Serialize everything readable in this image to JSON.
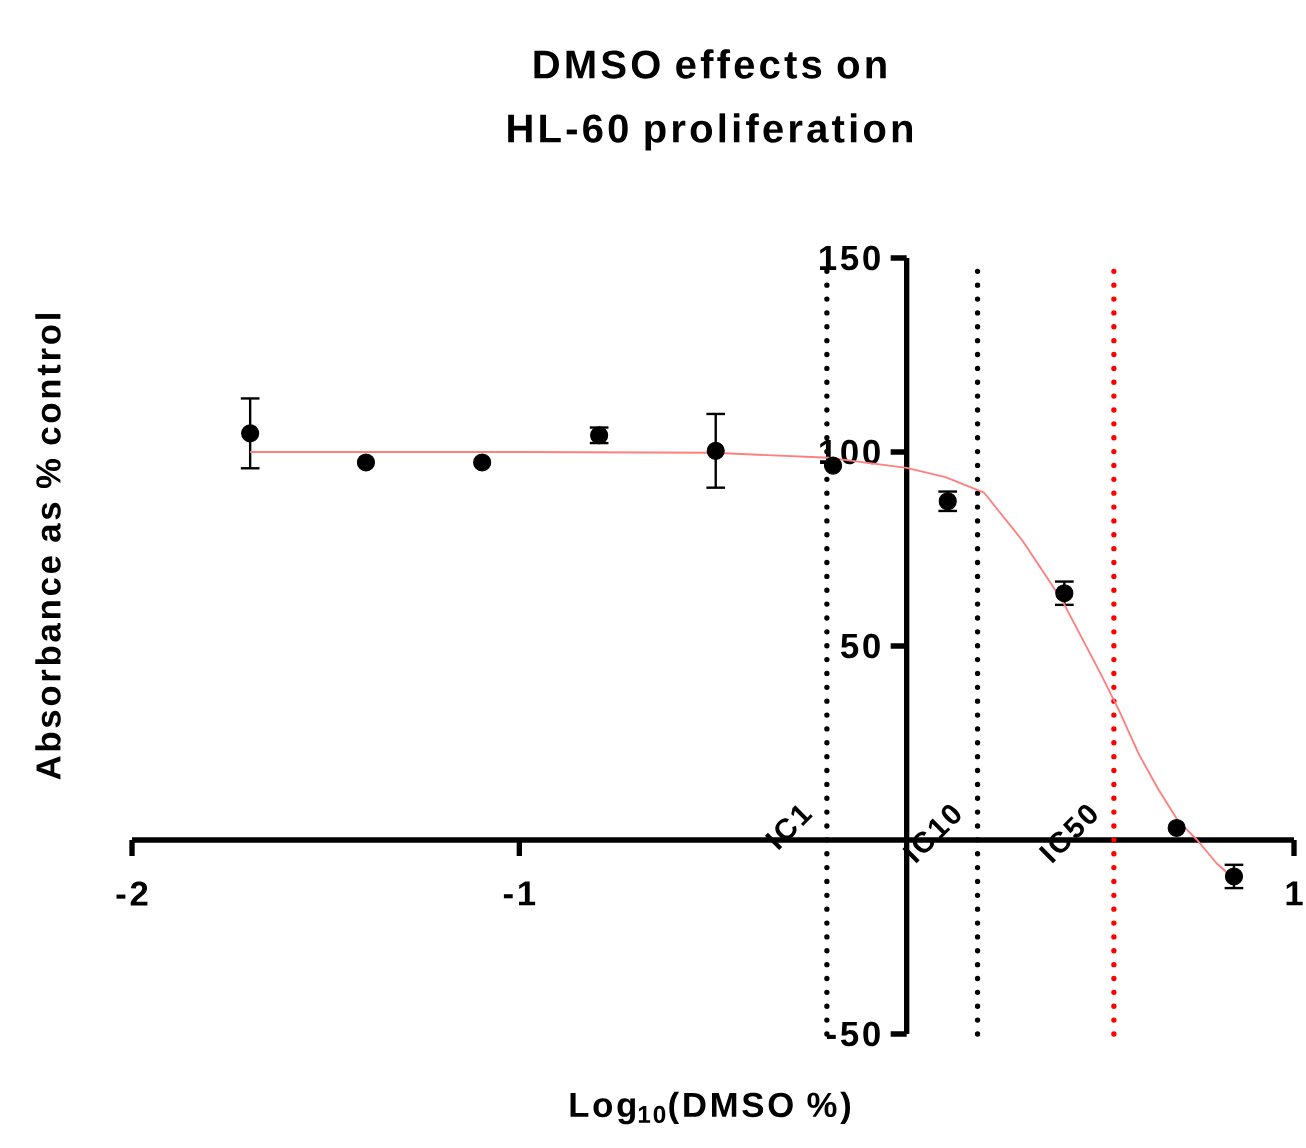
{
  "chart_data": {
    "type": "scatter",
    "title": "DMSO effects on HL-60 proliferation",
    "xlabel": "Log$_{10}$(DMSO %)",
    "ylabel": "Absorbance as % control",
    "xlim": [
      -2,
      1
    ],
    "ylim": [
      -50,
      150
    ],
    "xticks": [
      -2,
      -1,
      1
    ],
    "yticks": [
      -50,
      50,
      100,
      150
    ],
    "series": [
      {
        "color": "#000000",
        "marker": "circle",
        "x": [
          -1.695,
          -1.396,
          -1.096,
          -0.794,
          -0.493,
          -0.19,
          0.106,
          0.407,
          0.697,
          0.845
        ],
        "values": [
          104.8,
          97.3,
          97.3,
          104.3,
          100.3,
          96.5,
          87.3,
          63.6,
          3.1,
          -9.4
        ],
        "errors": [
          9,
          null,
          null,
          2,
          9.5,
          null,
          2.5,
          3,
          null,
          3
        ]
      },
      {
        "type": "line",
        "color": "#ff7f7f",
        "marker": "none",
        "x": [
          -1.695,
          -1,
          -0.5,
          -0.2,
          0,
          0.1,
          0.2,
          0.3,
          0.4,
          0.5,
          0.55,
          0.6,
          0.65,
          0.7,
          0.75,
          0.8,
          0.845
        ],
        "values": [
          100,
          100,
          99.8,
          98.5,
          95.9,
          93.5,
          89.5,
          77,
          62,
          43,
          33,
          22,
          13,
          5,
          0,
          -6,
          -10
        ]
      }
    ],
    "ref_lines": [
      {
        "axis": "x",
        "value": -0.206,
        "label": "IC1",
        "color": "#000000",
        "line_style": "dotted"
      },
      {
        "axis": "x",
        "value": 0.183,
        "label": "IC10",
        "color": "#000000",
        "line_style": "dotted"
      },
      {
        "axis": "x",
        "value": 0.535,
        "label": "IC50",
        "color": "#ff0000",
        "line_style": "dotted"
      }
    ]
  }
}
